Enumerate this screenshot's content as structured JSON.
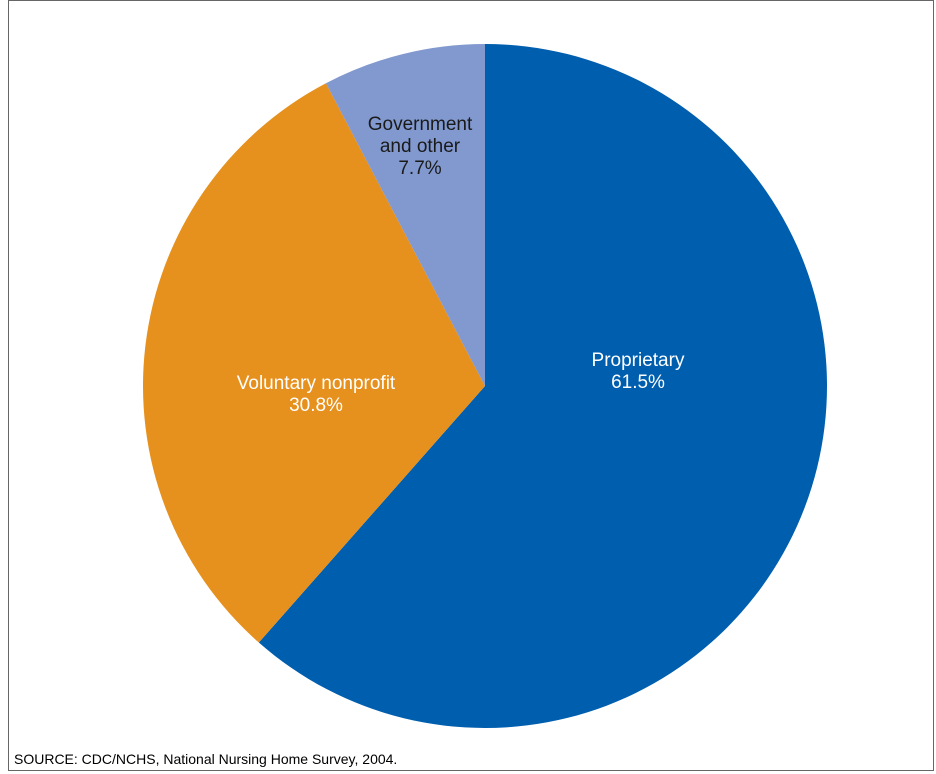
{
  "chart_data": {
    "type": "pie",
    "slices": [
      {
        "label_lines": [
          "Proprietary"
        ],
        "value": 61.5,
        "value_label": "61.5%",
        "color": "#005eae",
        "text_color": "#ffffff"
      },
      {
        "label_lines": [
          "Voluntary nonprofit"
        ],
        "value": 30.8,
        "value_label": "30.8%",
        "color": "#e6901d",
        "text_color": "#ffffff"
      },
      {
        "label_lines": [
          "Government",
          "and other"
        ],
        "value": 7.7,
        "value_label": "7.7%",
        "color": "#8199cf",
        "text_color": "#1a1a1a"
      }
    ],
    "start": "12 o'clock",
    "direction": "clockwise"
  },
  "source_note": "SOURCE: CDC/NCHS, National Nursing Home Survey, 2004."
}
